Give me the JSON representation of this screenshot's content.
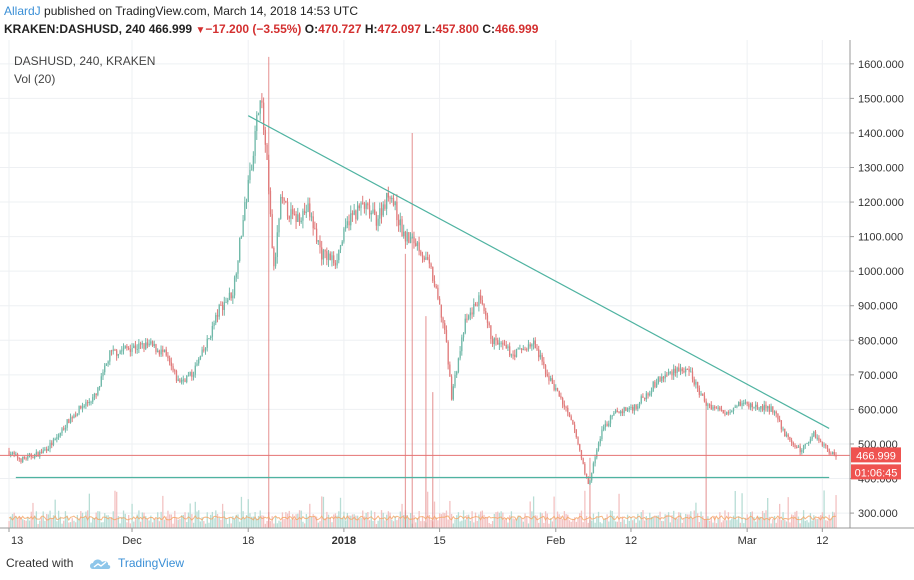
{
  "header": {
    "author": "AllardJ",
    "published": "published on TradingView.com, March 14, 2018 14:53 UTC",
    "symbol": "KRAKEN:DASHUSD, 240",
    "last": "466.999",
    "change": "−17.200 (−3.55%)",
    "o_label": "O:",
    "o": "470.727",
    "h_label": "H:",
    "h": "472.097",
    "l_label": "L:",
    "l": "457.800",
    "c_label": "C:",
    "c": "466.999"
  },
  "legend": {
    "symbol": "DASHUSD, 240, KRAKEN",
    "volume": "Vol (20)"
  },
  "price_badge": "466.999",
  "countdown_badge": "01:06:45",
  "footer": {
    "created_with": "Created with",
    "brand": "TradingView"
  },
  "colors": {
    "up": "#6fb8a8",
    "down": "#e07b7b",
    "trendline": "#4fb3a1",
    "support": "#4fb3a1",
    "price_line": "#e57373",
    "badge_red": "#ef5350",
    "vol_ma": "#f4a460"
  },
  "chart_data": {
    "type": "candlestick",
    "symbol": "DASHUSD",
    "interval": "240",
    "exchange": "KRAKEN",
    "y_ticks": [
      300,
      400,
      500,
      600,
      700,
      800,
      900,
      1000,
      1100,
      1200,
      1300,
      1400,
      1500,
      1600
    ],
    "y_tick_labels": [
      "300.000",
      "400.000",
      "500.000",
      "600.000",
      "700.000",
      "800.000",
      "900.000",
      "1000.000",
      "1100.000",
      "1200.000",
      "1300.000",
      "1400.000",
      "1500.000",
      "1600.000"
    ],
    "ylim": [
      280,
      1640
    ],
    "x_ticks": [
      "13",
      "Dec",
      "18",
      "2018",
      "15",
      "Feb",
      "12",
      "Mar",
      "12"
    ],
    "x_tick_dates": [
      "2017-11-13",
      "2017-12-01",
      "2017-12-18",
      "2018-01-01",
      "2018-01-15",
      "2018-02-01",
      "2018-02-12",
      "2018-03-01",
      "2018-03-12"
    ],
    "xlim": [
      "2017-11-13",
      "2018-03-14"
    ],
    "price_path": [
      [
        "2017-11-13",
        480
      ],
      [
        "2017-11-15",
        455
      ],
      [
        "2017-11-18",
        475
      ],
      [
        "2017-11-20",
        510
      ],
      [
        "2017-11-22",
        570
      ],
      [
        "2017-11-24",
        610
      ],
      [
        "2017-11-26",
        640
      ],
      [
        "2017-11-28",
        760
      ],
      [
        "2017-12-01",
        780
      ],
      [
        "2017-12-04",
        785
      ],
      [
        "2017-12-06",
        760
      ],
      [
        "2017-12-08",
        680
      ],
      [
        "2017-12-10",
        700
      ],
      [
        "2017-12-12",
        780
      ],
      [
        "2017-12-14",
        890
      ],
      [
        "2017-12-16",
        940
      ],
      [
        "2017-12-17",
        1080
      ],
      [
        "2017-12-19",
        1350
      ],
      [
        "2017-12-20",
        1520
      ],
      [
        "2017-12-21",
        1300
      ],
      [
        "2017-12-22",
        1000
      ],
      [
        "2017-12-23",
        1200
      ],
      [
        "2017-12-25",
        1150
      ],
      [
        "2017-12-27",
        1180
      ],
      [
        "2017-12-29",
        1050
      ],
      [
        "2017-12-31",
        1030
      ],
      [
        "2018-01-02",
        1150
      ],
      [
        "2018-01-04",
        1190
      ],
      [
        "2018-01-06",
        1150
      ],
      [
        "2018-01-08",
        1230
      ],
      [
        "2018-01-10",
        1100
      ],
      [
        "2018-01-12",
        1080
      ],
      [
        "2018-01-14",
        1000
      ],
      [
        "2018-01-16",
        830
      ],
      [
        "2018-01-17",
        640
      ],
      [
        "2018-01-19",
        850
      ],
      [
        "2018-01-21",
        920
      ],
      [
        "2018-01-23",
        800
      ],
      [
        "2018-01-26",
        760
      ],
      [
        "2018-01-29",
        790
      ],
      [
        "2018-01-31",
        700
      ],
      [
        "2018-02-02",
        630
      ],
      [
        "2018-02-04",
        540
      ],
      [
        "2018-02-06",
        380
      ],
      [
        "2018-02-08",
        540
      ],
      [
        "2018-02-10",
        590
      ],
      [
        "2018-02-13",
        610
      ],
      [
        "2018-02-16",
        680
      ],
      [
        "2018-02-19",
        720
      ],
      [
        "2018-02-21",
        700
      ],
      [
        "2018-02-23",
        620
      ],
      [
        "2018-02-26",
        590
      ],
      [
        "2018-02-28",
        620
      ],
      [
        "2018-03-02",
        610
      ],
      [
        "2018-03-05",
        600
      ],
      [
        "2018-03-07",
        520
      ],
      [
        "2018-03-09",
        480
      ],
      [
        "2018-03-11",
        530
      ],
      [
        "2018-03-13",
        485
      ],
      [
        "2018-03-14",
        467
      ]
    ],
    "volume_spikes": [
      [
        "2017-12-21",
        1620
      ],
      [
        "2018-01-11",
        1400
      ],
      [
        "2018-01-10",
        1050
      ],
      [
        "2018-01-13",
        870
      ],
      [
        "2018-01-14",
        650
      ],
      [
        "2018-02-23",
        620
      ],
      [
        "2018-02-06",
        460
      ]
    ],
    "trendline": [
      [
        "2017-12-18",
        1450
      ],
      [
        "2018-03-13",
        545
      ]
    ],
    "support_line": [
      [
        "2017-11-14",
        403
      ],
      [
        "2018-03-13",
        403
      ]
    ],
    "last_price": 466.999
  }
}
